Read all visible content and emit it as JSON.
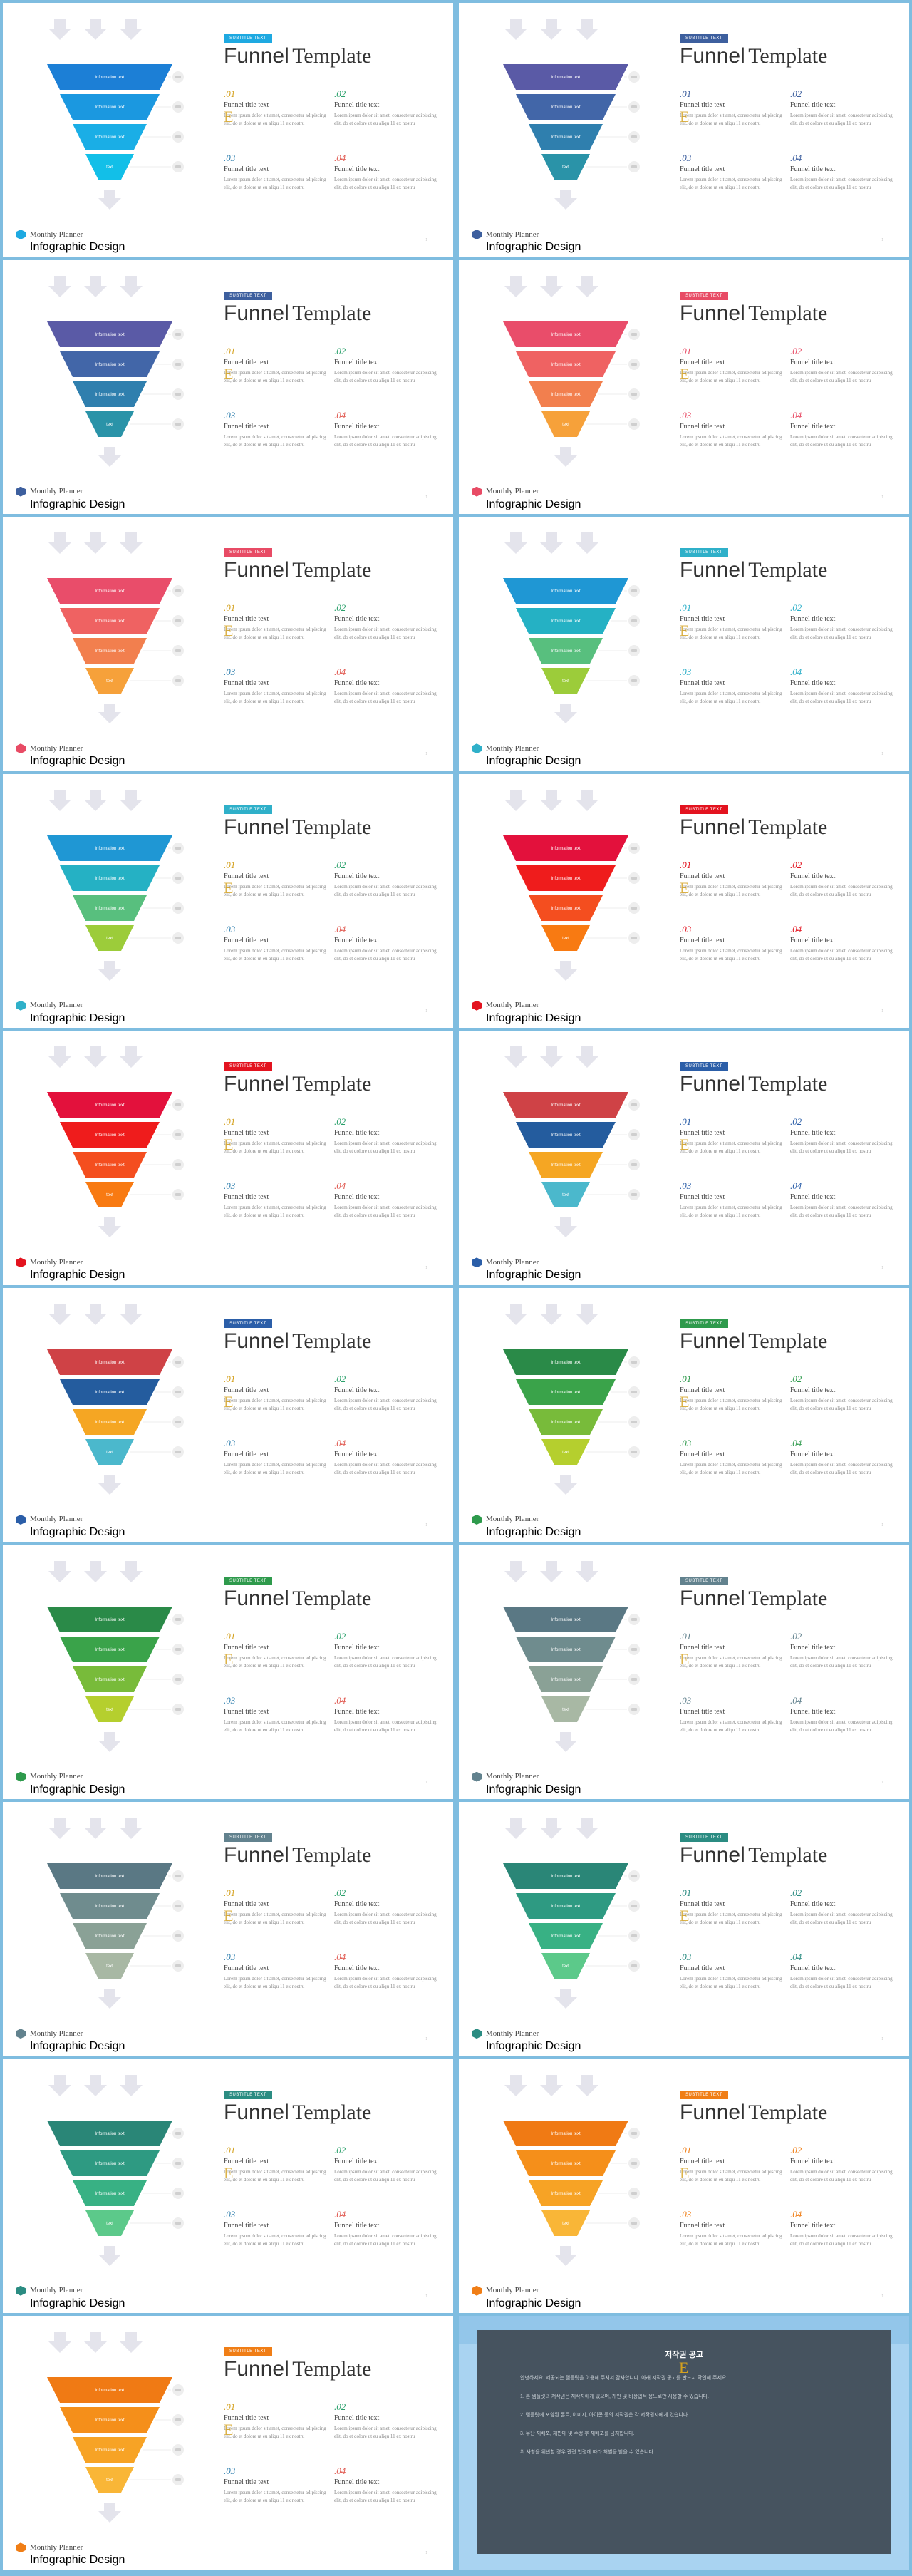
{
  "common": {
    "badge": "SUBTITLE TEXT",
    "title_sans": "Funnel",
    "title_serif": "Template",
    "footer_name": "Monthly Planner",
    "footer_sub": "Infographic Design",
    "level_label": "Information text",
    "level_label_short": "text",
    "items": [
      {
        "num": ".01",
        "title": "Funnel title text",
        "desc": "Lorem ipsum dolor sit amet, consectetur adipiscing elit, do et dolore ut eu aliqu 11 ex nostru"
      },
      {
        "num": ".02",
        "title": "Funnel title text",
        "desc": "Lorem ipsum dolor sit amet, consectetur adipiscing elit, do et dolore ut eu aliqu 11 ex nostru"
      },
      {
        "num": ".03",
        "title": "Funnel title text",
        "desc": "Lorem ipsum dolor sit amet, consectetur adipiscing elit, do et dolore ut eu aliqu 11 ex nostru"
      },
      {
        "num": ".04",
        "title": "Funnel title text",
        "desc": "Lorem ipsum dolor sit amet, consectetur adipiscing elit, do et dolore ut eu aliqu 11 ex nostru"
      }
    ],
    "page_number": "1"
  },
  "slides": [
    {
      "accent": "#1ea9e1",
      "colors": [
        "#1c7fd6",
        "#1b98e0",
        "#1aaee6",
        "#12bfe8"
      ]
    },
    {
      "accent": "#3d5f9e",
      "colors": [
        "#5a5aa6",
        "#4266a8",
        "#2f7fae",
        "#2a93a8"
      ]
    },
    {
      "accent": "#3d5f9e",
      "colors": [
        "#5a5aa6",
        "#4266a8",
        "#2f7fae",
        "#2a93a8"
      ]
    },
    {
      "accent": "#e84b65",
      "colors": [
        "#e94d6a",
        "#ef6262",
        "#f27f4e",
        "#f6a13a"
      ]
    },
    {
      "accent": "#e84b65",
      "colors": [
        "#e94d6a",
        "#ef6262",
        "#f27f4e",
        "#f6a13a"
      ]
    },
    {
      "accent": "#2fb0c9",
      "colors": [
        "#1f97d4",
        "#25b1c4",
        "#58bf7e",
        "#9ccc3a"
      ]
    },
    {
      "accent": "#2fb0c9",
      "colors": [
        "#1f97d4",
        "#25b1c4",
        "#58bf7e",
        "#9ccc3a"
      ]
    },
    {
      "accent": "#e3131f",
      "colors": [
        "#e3113c",
        "#ef1c1c",
        "#f44e1f",
        "#f87a12"
      ]
    },
    {
      "accent": "#e3131f",
      "colors": [
        "#e3113c",
        "#ef1c1c",
        "#f44e1f",
        "#f87a12"
      ]
    },
    {
      "accent": "#2b5ea8",
      "colors": [
        "#cf4246",
        "#245c9e",
        "#f5a623",
        "#4bb8cc"
      ]
    },
    {
      "accent": "#2b5ea8",
      "colors": [
        "#cf4246",
        "#245c9e",
        "#f5a623",
        "#4bb8cc"
      ]
    },
    {
      "accent": "#2e9a4c",
      "colors": [
        "#2a8a48",
        "#3aa34a",
        "#78bb3a",
        "#b5cf2e"
      ]
    },
    {
      "accent": "#2e9a4c",
      "colors": [
        "#2a8a48",
        "#3aa34a",
        "#78bb3a",
        "#b5cf2e"
      ]
    },
    {
      "accent": "#62828e",
      "colors": [
        "#5a7884",
        "#6f8c8e",
        "#8aa196",
        "#a8b8a4"
      ]
    },
    {
      "accent": "#62828e",
      "colors": [
        "#5a7884",
        "#6f8c8e",
        "#8aa196",
        "#a8b8a4"
      ]
    },
    {
      "accent": "#2b8c82",
      "colors": [
        "#2a8677",
        "#2e9a82",
        "#38b184",
        "#5cc98a"
      ]
    },
    {
      "accent": "#2b8c82",
      "colors": [
        "#2a8677",
        "#2e9a82",
        "#38b184",
        "#5cc98a"
      ]
    },
    {
      "accent": "#f07e16",
      "colors": [
        "#f07a14",
        "#f58f1a",
        "#f7a325",
        "#f9b637"
      ]
    },
    {
      "accent": "#f07e16",
      "colors": [
        "#f07a14",
        "#f58f1a",
        "#f7a325",
        "#f9b637"
      ]
    }
  ],
  "notice": {
    "heading": "저작권 공고",
    "paragraphs": [
      "안녕하세요. 제공되는 템플릿을 이용해 주셔서 감사합니다. 아래 저작권 공고를 반드시 확인해 주세요.",
      "1. 본 템플릿의 저작권은 제작자에게 있으며, 개인 및 비상업적 용도로만 사용할 수 있습니다.",
      "2. 템플릿에 포함된 폰트, 이미지, 아이콘 등의 저작권은 각 저작권자에게 있습니다.",
      "3. 무단 재배포, 재판매 및 수정 후 재배포를 금지합니다.",
      "위 사항을 위반할 경우 관련 법령에 따라 처벌을 받을 수 있습니다."
    ]
  }
}
